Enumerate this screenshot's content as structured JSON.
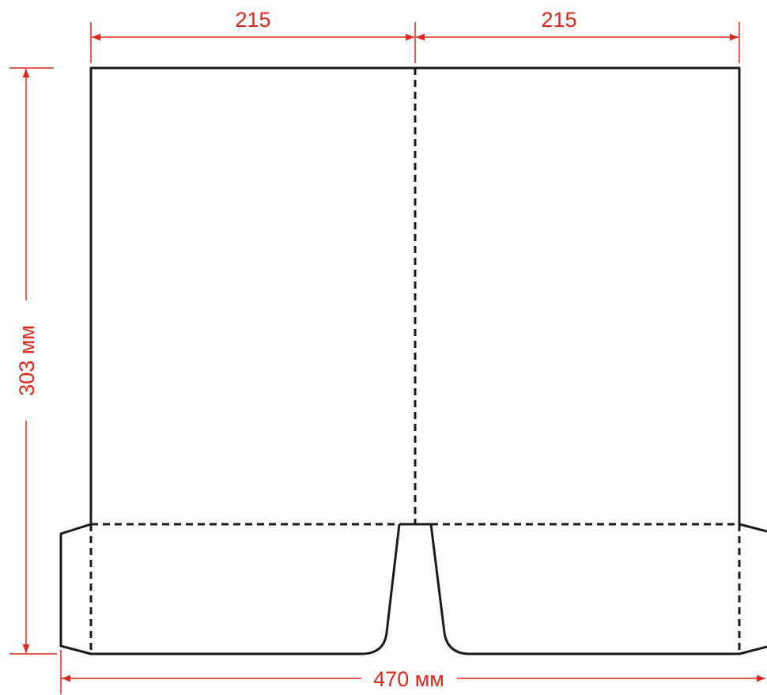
{
  "dimensions": {
    "top_left_width": "215",
    "top_right_width": "215",
    "height": "303 мм",
    "total_width": "470 мм"
  },
  "colors": {
    "dimension_line": "#e1251b",
    "outline": "#1a1a1a",
    "background": "#ffffff"
  }
}
